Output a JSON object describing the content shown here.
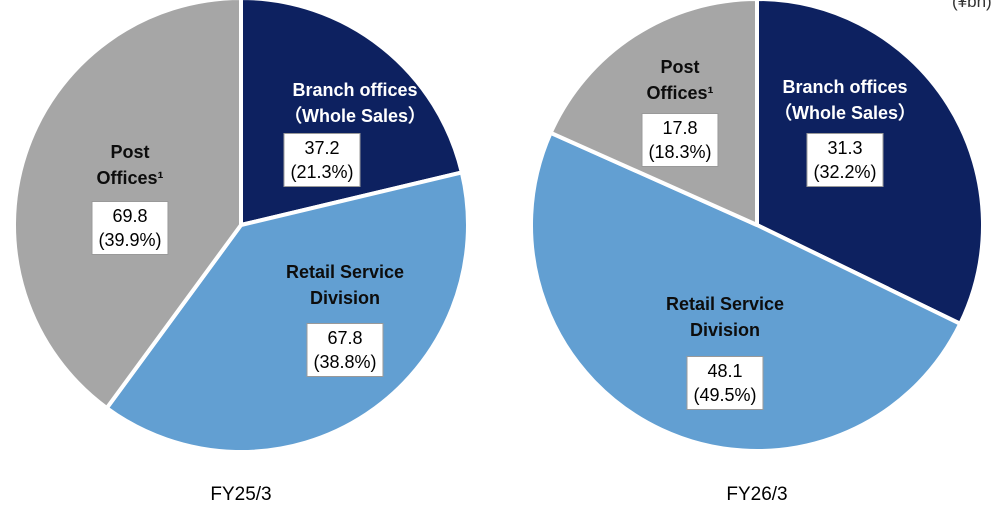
{
  "unit_note": "(¥bn)",
  "chart_data": [
    {
      "type": "pie",
      "title": "FY25/3",
      "categories": [
        "Branch offices（Whole Sales）",
        "Retail Service Division",
        "Post Offices¹"
      ],
      "values": [
        37.2,
        67.8,
        69.8
      ],
      "percentages": [
        21.3,
        38.8,
        39.9
      ],
      "percentage_labels": [
        "(21.3%)",
        "(38.8%)",
        "(39.9%)"
      ],
      "colors": [
        "#0d2160",
        "#629fd2",
        "#a6a6a6"
      ]
    },
    {
      "type": "pie",
      "title": "FY26/3",
      "categories": [
        "Branch offices（Whole Sales）",
        "Retail Service Division",
        "Post Offices¹"
      ],
      "values": [
        31.3,
        48.1,
        17.8
      ],
      "percentages": [
        32.2,
        49.5,
        18.3
      ],
      "percentage_labels": [
        "(32.2%)",
        "(49.5%)",
        "(18.3%)"
      ],
      "colors": [
        "#0d2160",
        "#629fd2",
        "#a6a6a6"
      ]
    }
  ]
}
